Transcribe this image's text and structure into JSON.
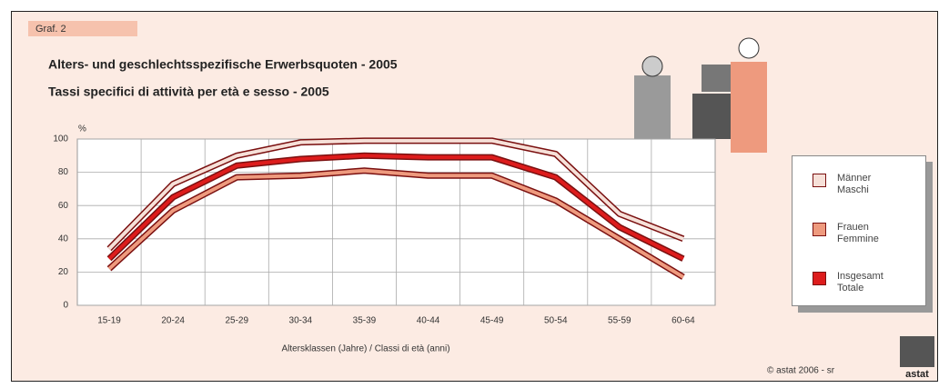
{
  "chart_data": {
    "type": "line",
    "tab": "Graf. 2",
    "title": "Alters- und geschlechtsspezifische Erwerbsquoten - 2005",
    "subtitle": "Tassi specifici di attività per età e sesso - 2005",
    "y_unit": "%",
    "x_label": "Altersklassen (Jahre) / Classi di età (anni)",
    "credit": "© astat 2006 - sr",
    "logo": "astat",
    "categories": [
      "15-19",
      "20-24",
      "25-29",
      "30-34",
      "35-39",
      "40-44",
      "45-49",
      "50-54",
      "55-59",
      "60-64"
    ],
    "series": [
      {
        "name": "Männer Maschi",
        "color": "#f6e0d8",
        "values": [
          34,
          73,
          90,
          98,
          99,
          99,
          99,
          91,
          55,
          40
        ]
      },
      {
        "name": "Frauen Femmine",
        "color": "#ee9a7e",
        "values": [
          22,
          57,
          77,
          78,
          81,
          78,
          78,
          63,
          40,
          17
        ]
      },
      {
        "name": "Insgesamt Totale",
        "color": "#dd1c1c",
        "values": [
          28,
          65,
          84,
          88,
          90,
          89,
          89,
          77,
          47,
          28
        ]
      }
    ],
    "ylim": [
      0,
      100
    ],
    "yticks": [
      0,
      20,
      40,
      60,
      80,
      100
    ],
    "grid": true
  }
}
